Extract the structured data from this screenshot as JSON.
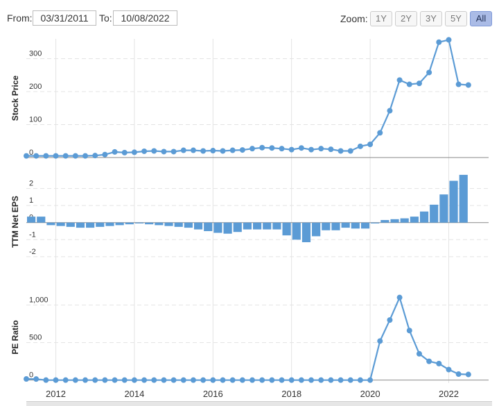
{
  "range": {
    "from_label": "From:",
    "from_value": "03/31/2011",
    "to_label": "To:",
    "to_value": "10/08/2022"
  },
  "zoom": {
    "label": "Zoom:",
    "buttons": [
      "1Y",
      "2Y",
      "3Y",
      "5Y",
      "All"
    ],
    "active": "All"
  },
  "colors": {
    "series": "#5b9bd5",
    "grid": "#e3e3e3",
    "zero": "#888888"
  },
  "chart_data": [
    {
      "type": "line",
      "ylabel": "Stock Price",
      "yticks": [
        "0",
        "100",
        "200",
        "300"
      ],
      "ytick_values": [
        0,
        100,
        200,
        300
      ],
      "ylim": [
        0,
        360
      ],
      "xlim": [
        2011.25,
        2022.75
      ],
      "x": [
        2011.25,
        2011.5,
        2011.75,
        2012.0,
        2012.25,
        2012.5,
        2012.75,
        2013.0,
        2013.25,
        2013.5,
        2013.75,
        2014.0,
        2014.25,
        2014.5,
        2014.75,
        2015.0,
        2015.25,
        2015.5,
        2015.75,
        2016.0,
        2016.25,
        2016.5,
        2016.75,
        2017.0,
        2017.25,
        2017.5,
        2017.75,
        2018.0,
        2018.25,
        2018.5,
        2018.75,
        2019.0,
        2019.25,
        2019.5,
        2019.75,
        2020.0,
        2020.25,
        2020.5,
        2020.75,
        2021.0,
        2021.25,
        2021.5,
        2021.75,
        2022.0,
        2022.25,
        2022.5
      ],
      "values": [
        5,
        5,
        5,
        5,
        5,
        5,
        5,
        6,
        9,
        17,
        15,
        16,
        19,
        20,
        18,
        18,
        22,
        22,
        20,
        21,
        20,
        22,
        23,
        27,
        30,
        29,
        27,
        24,
        29,
        24,
        27,
        25,
        20,
        20,
        34,
        40,
        75,
        142,
        235,
        222,
        225,
        258,
        350,
        357,
        222,
        220
      ]
    },
    {
      "type": "bar",
      "ylabel": "TTM Net EPS",
      "yticks": [
        "2",
        "1",
        "0",
        "-1",
        "-2"
      ],
      "ytick_values": [
        2,
        1,
        0,
        -1,
        -2
      ],
      "ylim": [
        -2.9,
        3.0
      ],
      "xlim": [
        2011.25,
        2022.75
      ],
      "x": [
        2011.25,
        2011.5,
        2011.75,
        2012.0,
        2012.25,
        2012.5,
        2012.75,
        2013.0,
        2013.25,
        2013.5,
        2013.75,
        2014.0,
        2014.25,
        2014.5,
        2014.75,
        2015.0,
        2015.25,
        2015.5,
        2015.75,
        2016.0,
        2016.25,
        2016.5,
        2016.75,
        2017.0,
        2017.25,
        2017.5,
        2017.75,
        2018.0,
        2018.25,
        2018.5,
        2018.75,
        2019.0,
        2019.25,
        2019.5,
        2019.75,
        2020.0,
        2020.25,
        2020.5,
        2020.75,
        2021.0,
        2021.25,
        2021.5,
        2021.75,
        2022.0,
        2022.25,
        2022.5
      ],
      "values": [
        0.35,
        0.35,
        -0.15,
        -0.2,
        -0.25,
        -0.3,
        -0.3,
        -0.25,
        -0.2,
        -0.15,
        -0.1,
        -0.05,
        -0.1,
        -0.15,
        -0.2,
        -0.25,
        -0.3,
        -0.4,
        -0.5,
        -0.6,
        -0.65,
        -0.55,
        -0.4,
        -0.4,
        -0.4,
        -0.4,
        -0.75,
        -1.0,
        -1.15,
        -0.8,
        -0.45,
        -0.45,
        -0.3,
        -0.35,
        -0.35,
        -0.05,
        0.15,
        0.2,
        0.25,
        0.35,
        0.65,
        1.05,
        1.65,
        2.45,
        2.8,
        0
      ]
    },
    {
      "type": "line",
      "ylabel": "PE Ratio",
      "yticks": [
        "0",
        "500",
        "1,000"
      ],
      "ytick_values": [
        0,
        500,
        1000
      ],
      "ylim": [
        -40,
        1180
      ],
      "xlim": [
        2011.25,
        2022.75
      ],
      "x": [
        2011.25,
        2011.5,
        2011.75,
        2012.0,
        2012.25,
        2012.5,
        2012.75,
        2013.0,
        2013.25,
        2013.5,
        2013.75,
        2014.0,
        2014.25,
        2014.5,
        2014.75,
        2015.0,
        2015.25,
        2015.5,
        2015.75,
        2016.0,
        2016.25,
        2016.5,
        2016.75,
        2017.0,
        2017.25,
        2017.5,
        2017.75,
        2018.0,
        2018.25,
        2018.5,
        2018.75,
        2019.0,
        2019.25,
        2019.5,
        2019.75,
        2020.0,
        2020.25,
        2020.5,
        2020.75,
        2021.0,
        2021.25,
        2021.5,
        2021.75,
        2022.0,
        2022.25,
        2022.5
      ],
      "values": [
        15,
        14,
        0,
        0,
        0,
        0,
        0,
        0,
        0,
        0,
        0,
        0,
        0,
        0,
        0,
        0,
        0,
        0,
        0,
        0,
        0,
        0,
        0,
        0,
        0,
        0,
        0,
        0,
        0,
        0,
        0,
        0,
        0,
        0,
        0,
        0,
        520,
        800,
        1100,
        660,
        350,
        250,
        220,
        140,
        80,
        75
      ]
    }
  ],
  "x_axis": {
    "ticks": [
      "2012",
      "2014",
      "2016",
      "2018",
      "2020",
      "2022"
    ],
    "tick_values": [
      2012,
      2014,
      2016,
      2018,
      2020,
      2022
    ]
  }
}
